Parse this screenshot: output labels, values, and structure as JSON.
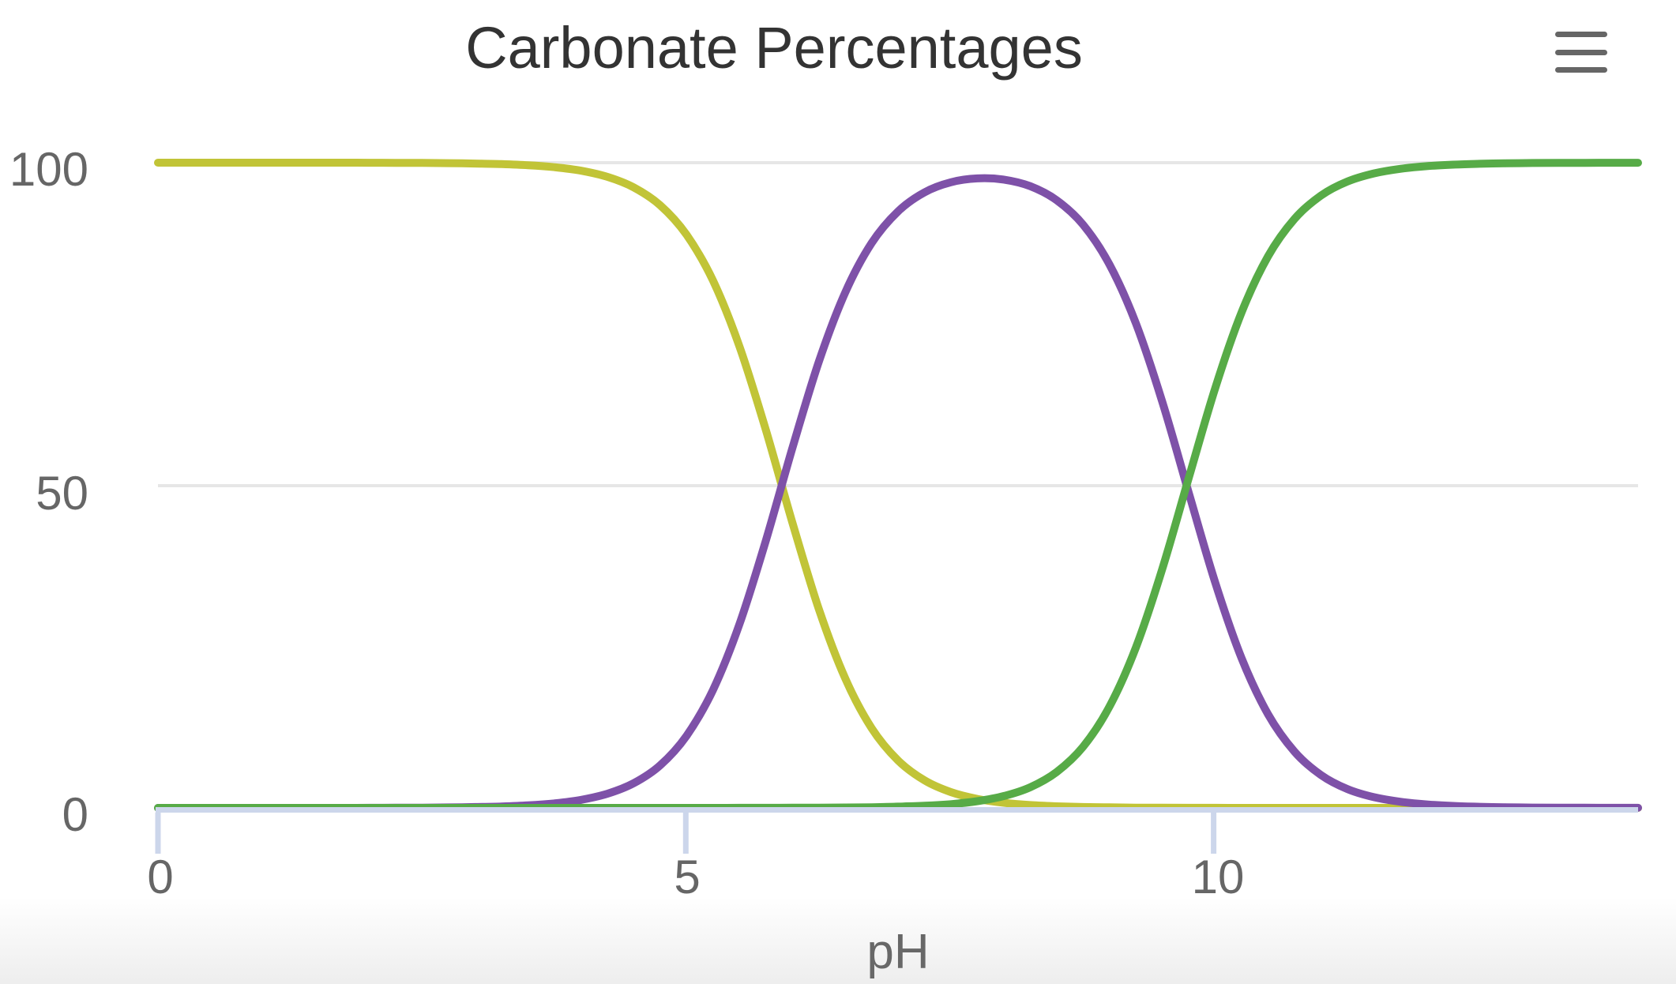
{
  "chart": {
    "title": "Carbonate Percentages",
    "title_color": "#333333",
    "menu_icon": "hamburger-icon"
  },
  "x_axis": {
    "title": "pH",
    "ticks": [
      "0",
      "5",
      "10"
    ],
    "min": 0,
    "max": 14,
    "line_color": "#ccd6eb"
  },
  "y_axis": {
    "ticks": [
      "100",
      "50",
      "0"
    ],
    "min": 0,
    "max": 100,
    "gridline_values": [
      100,
      50
    ],
    "gridline_color": "#e6e6e6"
  },
  "chart_data": {
    "type": "line",
    "title": "Carbonate Percentages",
    "xlabel": "pH",
    "ylabel": "",
    "xlim": [
      0,
      14
    ],
    "ylim": [
      0,
      100
    ],
    "grid": "horizontal",
    "legend": "none",
    "x_start": 0,
    "x_step": 0.25,
    "line_width": 10,
    "series": [
      {
        "name": "yellow-curve",
        "color": "#c1c437",
        "values": [
          100,
          100,
          100,
          100,
          100,
          100,
          100,
          100,
          99.99,
          99.98,
          99.96,
          99.93,
          99.87,
          99.78,
          99.6,
          99.3,
          98.76,
          97.81,
          96.17,
          93.4,
          88.82,
          81.71,
          71.53,
          58.55,
          44.27,
          30.86,
          20.08,
          12.37,
          7.36,
          4.27,
          2.45,
          1.39,
          0.79,
          0.44,
          0.25,
          0.14,
          0.08,
          0.04,
          0.02,
          0.01,
          0.01,
          0,
          0,
          0,
          0,
          0,
          0,
          0,
          0,
          0,
          0,
          0,
          0,
          0,
          0,
          0,
          0
        ]
      },
      {
        "name": "purple-curve",
        "color": "#7e51a8",
        "values": [
          0,
          0,
          0,
          0,
          0,
          0,
          0,
          0,
          0.01,
          0.02,
          0.04,
          0.07,
          0.13,
          0.22,
          0.4,
          0.7,
          1.24,
          2.19,
          3.83,
          6.6,
          11.18,
          18.29,
          28.47,
          41.45,
          55.71,
          69.11,
          79.86,
          87.53,
          92.45,
          95.4,
          96.97,
          97.57,
          97.38,
          96.36,
          94.19,
          90.39,
          84.22,
          75.09,
          62.93,
          48.84,
          34.93,
          23.19,
          14.51,
          8.72,
          5.1,
          2.92,
          1.67,
          0.95,
          0.54,
          0.3,
          0.17,
          0.1,
          0.05,
          0.03,
          0.02,
          0.01,
          0.01
        ]
      },
      {
        "name": "green-curve",
        "color": "#57ab47",
        "values": [
          0,
          0,
          0,
          0,
          0,
          0,
          0,
          0,
          0,
          0,
          0,
          0,
          0,
          0,
          0,
          0,
          0,
          0,
          0,
          0,
          0,
          0,
          0.01,
          0.01,
          0.02,
          0.03,
          0.06,
          0.1,
          0.19,
          0.33,
          0.58,
          1.04,
          1.83,
          3.2,
          5.56,
          9.47,
          15.7,
          24.87,
          37.05,
          51.15,
          65.06,
          76.81,
          85.49,
          91.28,
          94.9,
          97.08,
          98.33,
          99.05,
          99.46,
          99.7,
          99.83,
          99.9,
          99.95,
          99.97,
          99.98,
          99.99,
          99.99
        ]
      }
    ]
  }
}
